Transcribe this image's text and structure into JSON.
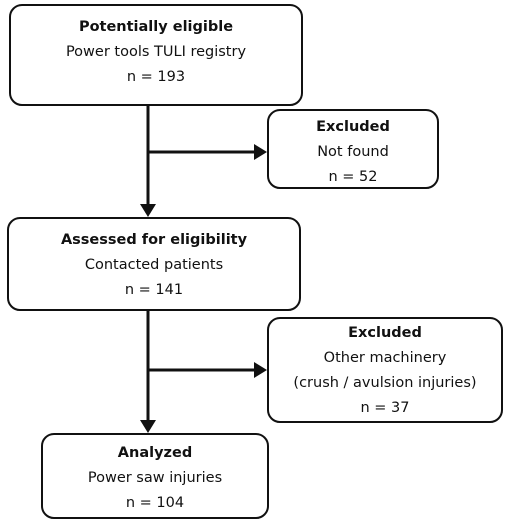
{
  "nodes": [
    {
      "title": "Potentially eligible",
      "lines": [
        "Power tools TULI registry",
        "n = 193"
      ]
    },
    {
      "title": "Excluded",
      "lines": [
        "Not found",
        "n = 52"
      ]
    },
    {
      "title": "Assessed for eligibility",
      "lines": [
        "Contacted patients",
        "n = 141"
      ]
    },
    {
      "title": "Excluded",
      "lines": [
        "Other machinery",
        "(crush / avulsion injuries)",
        "n = 37"
      ]
    },
    {
      "title": "Analyzed",
      "lines": [
        "Power saw injuries",
        "n = 104"
      ]
    }
  ]
}
